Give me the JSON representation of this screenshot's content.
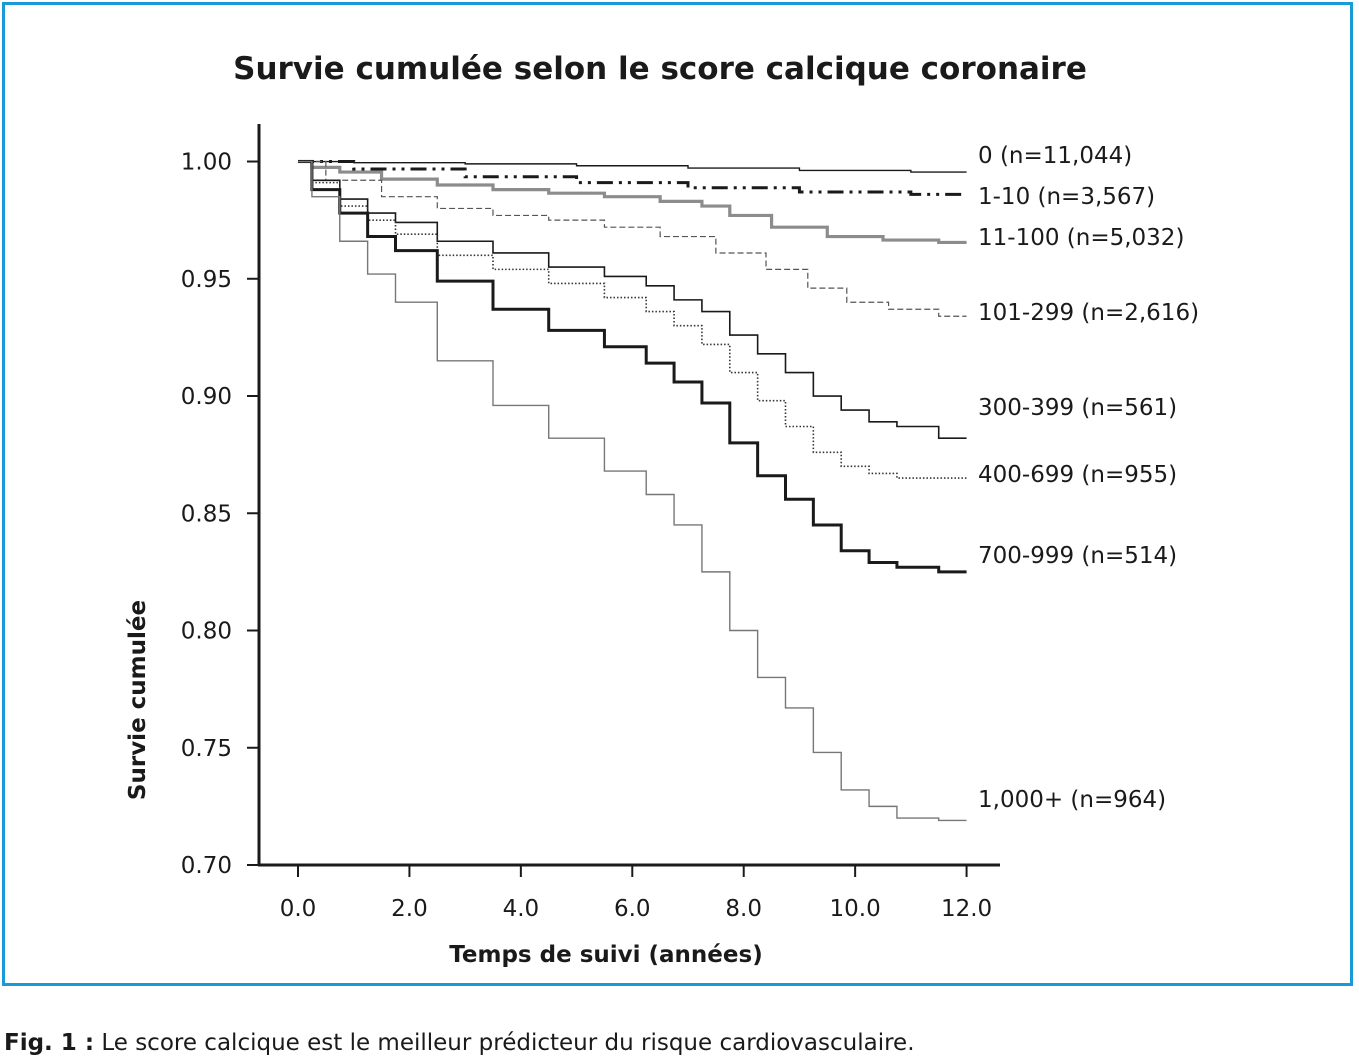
{
  "chart_data": {
    "type": "line",
    "title": "Survie cumulée selon le score calcique coronaire",
    "xlabel": "Temps de suivi (années)",
    "ylabel": "Survie cumulée",
    "xlim": [
      -0.7,
      12.6
    ],
    "ylim": [
      0.7,
      1.016
    ],
    "x_ticks": [
      "0.0",
      "2.0",
      "4.0",
      "6.0",
      "8.0",
      "10.0",
      "12.0"
    ],
    "y_ticks": [
      "1.00",
      "0.95",
      "0.90",
      "0.85",
      "0.80",
      "0.75",
      "0.70"
    ],
    "grid": false,
    "legend": "labels at line ends (right)",
    "series": [
      {
        "name": "0 (n=11,044)",
        "color": "#1a1a1a",
        "style": "solid-thin",
        "x": [
          0,
          2,
          4,
          6,
          8,
          10,
          12
        ],
        "y": [
          1.0,
          0.9995,
          0.999,
          0.9982,
          0.9972,
          0.9962,
          0.9955
        ]
      },
      {
        "name": "1-10 (n=3,567)",
        "color": "#1a1a1a",
        "style": "dashdot",
        "x": [
          0,
          2,
          4,
          6,
          8,
          10,
          12
        ],
        "y": [
          1.0,
          0.9968,
          0.9935,
          0.991,
          0.9888,
          0.987,
          0.986
        ]
      },
      {
        "name": "11-100 (n=5,032)",
        "color": "#8c8c8c",
        "style": "solid-thick",
        "x": [
          0,
          0.5,
          1.0,
          2.0,
          3.0,
          4.0,
          5.0,
          6.0,
          7.0,
          7.5,
          8.0,
          9.0,
          10.0,
          11.0,
          12.0
        ],
        "y": [
          1.0,
          0.9975,
          0.9955,
          0.9925,
          0.99,
          0.988,
          0.9865,
          0.985,
          0.983,
          0.981,
          0.977,
          0.972,
          0.968,
          0.9665,
          0.9655
        ]
      },
      {
        "name": "101-299 (n=2,616)",
        "color": "#555555",
        "style": "dashed-thin",
        "x": [
          0,
          1,
          2,
          3,
          4,
          5,
          6,
          7,
          8,
          8.8,
          9.5,
          10.2,
          11,
          12
        ],
        "y": [
          1.0,
          0.992,
          0.985,
          0.98,
          0.977,
          0.975,
          0.972,
          0.968,
          0.961,
          0.954,
          0.946,
          0.94,
          0.937,
          0.934
        ]
      },
      {
        "name": "300-399 (n=561)",
        "color": "#1a1a1a",
        "style": "solid",
        "x": [
          0,
          0.5,
          1,
          1.5,
          2,
          3,
          4,
          5,
          6,
          6.5,
          7,
          7.5,
          8,
          8.5,
          9,
          9.5,
          10,
          10.5,
          11,
          12
        ],
        "y": [
          1.0,
          0.992,
          0.984,
          0.978,
          0.974,
          0.966,
          0.961,
          0.955,
          0.951,
          0.947,
          0.941,
          0.936,
          0.926,
          0.918,
          0.91,
          0.9,
          0.894,
          0.889,
          0.887,
          0.882
        ]
      },
      {
        "name": "400-699 (n=955)",
        "color": "#333333",
        "style": "dotted",
        "x": [
          0,
          0.5,
          1,
          1.5,
          2,
          3,
          4,
          5,
          6,
          6.5,
          7,
          7.5,
          8,
          8.5,
          9,
          9.5,
          10,
          10.5,
          11,
          12
        ],
        "y": [
          1.0,
          0.991,
          0.981,
          0.975,
          0.969,
          0.96,
          0.954,
          0.948,
          0.942,
          0.936,
          0.93,
          0.922,
          0.91,
          0.898,
          0.887,
          0.876,
          0.87,
          0.867,
          0.865,
          0.865
        ]
      },
      {
        "name": "700-999 (n=514)",
        "color": "#1a1a1a",
        "style": "solid-bold",
        "x": [
          0,
          0.5,
          1,
          1.5,
          2,
          3,
          4,
          5,
          6,
          6.5,
          7,
          7.5,
          8,
          8.5,
          9,
          9.5,
          10,
          10.5,
          11,
          12
        ],
        "y": [
          1.0,
          0.988,
          0.978,
          0.968,
          0.962,
          0.949,
          0.937,
          0.928,
          0.921,
          0.914,
          0.906,
          0.897,
          0.88,
          0.866,
          0.856,
          0.845,
          0.834,
          0.829,
          0.827,
          0.825
        ]
      },
      {
        "name": "1,000+ (n=964)",
        "color": "#777777",
        "style": "solid-thin",
        "x": [
          0,
          0.5,
          1,
          1.5,
          2,
          3,
          4,
          5,
          6,
          6.5,
          7,
          7.5,
          8,
          8.5,
          9,
          9.5,
          10,
          10.5,
          11,
          12
        ],
        "y": [
          1.0,
          0.985,
          0.966,
          0.952,
          0.94,
          0.915,
          0.896,
          0.882,
          0.868,
          0.858,
          0.845,
          0.825,
          0.8,
          0.78,
          0.767,
          0.748,
          0.732,
          0.725,
          0.72,
          0.719
        ]
      }
    ]
  },
  "caption": {
    "label": "Fig. 1 :",
    "text": "Le score calcique est le meilleur prédicteur du risque cardiovasculaire."
  }
}
